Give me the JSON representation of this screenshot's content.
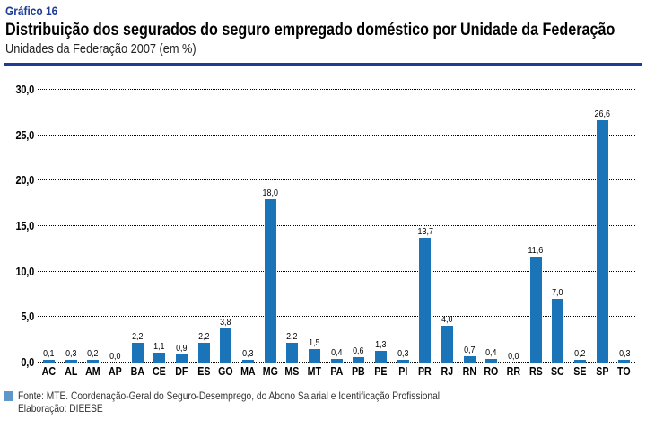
{
  "header": {
    "chart_number": "Gráfico 16",
    "title": "Distribuição dos segurados do seguro empregado doméstico por Unidade da Federação",
    "subtitle": "Unidades da Federação 2007 (em %)"
  },
  "colors": {
    "bar_blue": "#1B74B8",
    "heading_blue": "#1E3C96",
    "rule_blue": "#1E3C96",
    "footer_square_blue": "#6097C9"
  },
  "chart_data": {
    "type": "bar",
    "title": "Distribuição dos segurados do seguro empregado doméstico por Unidade da Federação",
    "subtitle": "Unidades da Federação 2007 (em %)",
    "categories": [
      "AC",
      "AL",
      "AM",
      "AP",
      "BA",
      "CE",
      "DF",
      "ES",
      "GO",
      "MA",
      "MG",
      "MS",
      "MT",
      "PA",
      "PB",
      "PE",
      "PI",
      "PR",
      "RJ",
      "RN",
      "RO",
      "RR",
      "RS",
      "SC",
      "SE",
      "SP",
      "TO"
    ],
    "values": [
      0.1,
      0.3,
      0.2,
      0.0,
      2.2,
      1.1,
      0.9,
      2.2,
      3.8,
      0.3,
      18.0,
      2.2,
      1.5,
      0.4,
      0.6,
      1.3,
      0.3,
      13.7,
      4.0,
      0.7,
      0.4,
      0.0,
      11.6,
      7.0,
      0.2,
      26.6,
      0.3
    ],
    "value_labels": [
      "0,1",
      "0,3",
      "0,2",
      "0,0",
      "2,2",
      "1,1",
      "0,9",
      "2,2",
      "3,8",
      "0,3",
      "18,0",
      "2,2",
      "1,5",
      "0,4",
      "0,6",
      "1,3",
      "0,3",
      "13,7",
      "4,0",
      "0,7",
      "0,4",
      "0,0",
      "11,6",
      "7,0",
      "0,2",
      "26,6",
      "0,3"
    ],
    "ylim": [
      0,
      30
    ],
    "ytick_labels": [
      "30,0",
      "25,0",
      "20,0",
      "15,0",
      "10,0",
      "5,0",
      "0,0"
    ],
    "grid": "horizontal dotted",
    "legend": "none",
    "bar_color": "#1B74B8"
  },
  "footer": {
    "source": "Fonte: MTE. Coordenação-Geral do Seguro-Desemprego, do Abono Salarial e Identificação Profissional",
    "elaboration": "Elaboração: DIEESE"
  }
}
